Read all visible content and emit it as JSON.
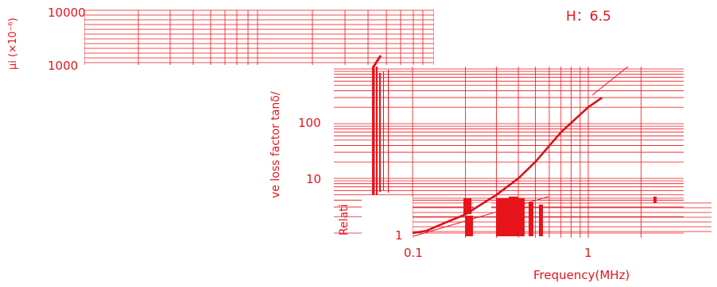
{
  "chart_data": {
    "type": "line",
    "title": "H：6.5",
    "xlabel": "Frequency(MHz)",
    "ylabel": "Relative loss factor tanδ/μi (×10⁻⁶)",
    "ylabel_fragments": [
      "μi (×10⁻⁶)",
      "ve loss factor tanδ/",
      "Relati"
    ],
    "x_scale": "log",
    "y_scale": "log",
    "xlim": [
      0.1,
      2
    ],
    "ylim": [
      1,
      10000
    ],
    "x_ticks": [
      "0.1",
      "1"
    ],
    "y_ticks": [
      "10000",
      "1000",
      "100",
      "10",
      "1"
    ],
    "grid": true,
    "series": [
      {
        "x": [
          0.1,
          0.12,
          0.15,
          0.2,
          0.3,
          0.4,
          0.5,
          0.7,
          1.0,
          1.2
        ],
        "y": [
          1,
          1.1,
          1.5,
          2.2,
          5,
          10,
          20,
          70,
          200,
          300
        ]
      }
    ]
  }
}
